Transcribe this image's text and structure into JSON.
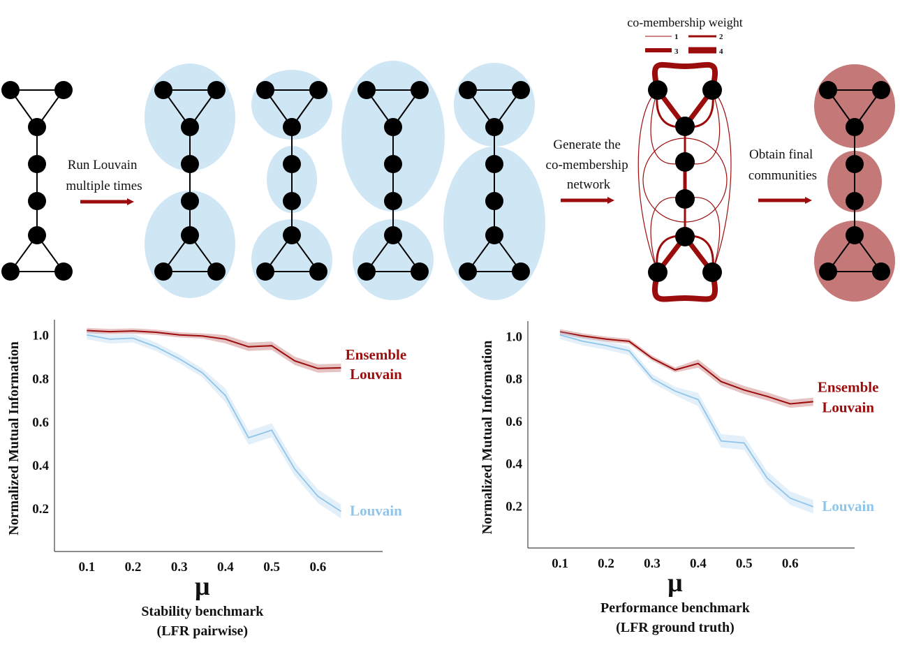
{
  "pipeline": {
    "step1": [
      "Run Louvain",
      "multiple times"
    ],
    "step2": [
      "Generate the",
      "co-membership",
      "network"
    ],
    "step3": [
      "Obtain final",
      "communities"
    ],
    "legend": {
      "title": "co-membership weight",
      "items": [
        "1",
        "2",
        "3",
        "4"
      ]
    }
  },
  "colors": {
    "ensemble": "#9b0d0d",
    "louvain": "#8fc5ea",
    "community_blue": "#cfe6f5",
    "community_red": "#c47878"
  },
  "chart_data": [
    {
      "type": "line",
      "caption": [
        "Stability benchmark",
        "(LFR pairwise)"
      ],
      "xlabel": "μ",
      "ylabel": "Normalized Mutual Information",
      "xticks": [
        "0.1",
        "0.2",
        "0.3",
        "0.4",
        "0.5",
        "0.6"
      ],
      "yticks": [
        "0.2",
        "0.4",
        "0.6",
        "0.8",
        "1.0"
      ],
      "xlim": [
        0.03,
        0.74
      ],
      "ylim": [
        0.0,
        1.07
      ],
      "x": [
        0.1,
        0.15,
        0.2,
        0.25,
        0.3,
        0.35,
        0.4,
        0.45,
        0.5,
        0.55,
        0.6,
        0.65
      ],
      "series": [
        {
          "name": "Ensemble Louvain",
          "label_lines": [
            "Ensemble",
            "Louvain"
          ],
          "values": [
            1.02,
            1.015,
            1.018,
            1.012,
            1.0,
            0.995,
            0.98,
            0.945,
            0.95,
            0.88,
            0.845,
            0.848
          ]
        },
        {
          "name": "Louvain",
          "label_lines": [
            "Louvain"
          ],
          "values": [
            1.0,
            0.98,
            0.985,
            0.945,
            0.89,
            0.825,
            0.72,
            0.525,
            0.56,
            0.38,
            0.255,
            0.185
          ]
        }
      ]
    },
    {
      "type": "line",
      "caption": [
        "Performance benchmark",
        "(LFR ground truth)"
      ],
      "xlabel": "μ",
      "ylabel": "Normalized Mutual Information",
      "xticks": [
        "0.1",
        "0.2",
        "0.3",
        "0.4",
        "0.5",
        "0.6"
      ],
      "yticks": [
        "0.2",
        "0.4",
        "0.6",
        "0.8",
        "1.0"
      ],
      "xlim": [
        0.03,
        0.74
      ],
      "ylim": [
        0.0,
        1.07
      ],
      "x": [
        0.1,
        0.15,
        0.2,
        0.25,
        0.3,
        0.35,
        0.4,
        0.45,
        0.5,
        0.55,
        0.6,
        0.65
      ],
      "series": [
        {
          "name": "Ensemble Louvain",
          "label_lines": [
            "Ensemble",
            "Louvain"
          ],
          "values": [
            1.02,
            1.0,
            0.985,
            0.975,
            0.895,
            0.84,
            0.87,
            0.785,
            0.745,
            0.715,
            0.68,
            0.69
          ]
        },
        {
          "name": "Louvain",
          "label_lines": [
            "Louvain"
          ],
          "values": [
            1.005,
            0.975,
            0.955,
            0.93,
            0.8,
            0.74,
            0.7,
            0.505,
            0.495,
            0.33,
            0.235,
            0.195
          ]
        }
      ]
    }
  ]
}
